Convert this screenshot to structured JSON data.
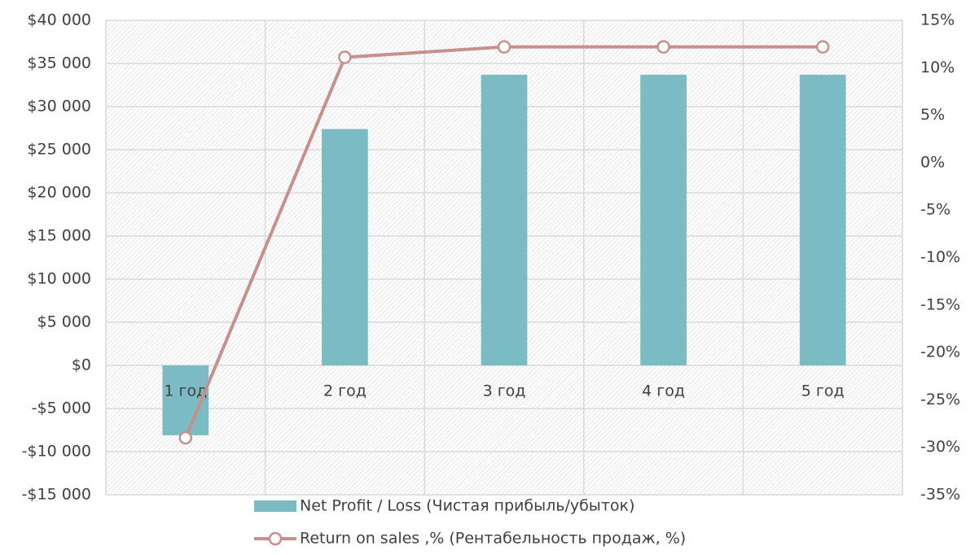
{
  "chart_data": {
    "type": "bar",
    "categories": [
      "1 год",
      "2 год",
      "3 год",
      "4 год",
      "5 год"
    ],
    "series": [
      {
        "name": "Net Profit / Loss (Чистая прибыль/убыток)",
        "type": "bar",
        "color": "#7bbcc4",
        "values": [
          -8100,
          27400,
          33700,
          33700,
          33700
        ]
      },
      {
        "name": "Return on sales ,% (Рентабельность продаж, %)",
        "type": "line",
        "color": "#c9908b",
        "axis": "y2",
        "values": [
          -29,
          11.1,
          12.2,
          12.2,
          12.2
        ]
      }
    ],
    "ylim": [
      -15000,
      40000
    ],
    "yticks": [
      {
        "value": -15000,
        "label": "-$15 000"
      },
      {
        "value": -10000,
        "label": "-$10 000"
      },
      {
        "value": -5000,
        "label": "-$5 000"
      },
      {
        "value": 0,
        "label": "$0"
      },
      {
        "value": 5000,
        "label": "$5 000"
      },
      {
        "value": 10000,
        "label": "$10 000"
      },
      {
        "value": 15000,
        "label": "$15 000"
      },
      {
        "value": 20000,
        "label": "$20 000"
      },
      {
        "value": 25000,
        "label": "$25 000"
      },
      {
        "value": 30000,
        "label": "$30 000"
      },
      {
        "value": 35000,
        "label": "$35 000"
      },
      {
        "value": 40000,
        "label": "$40 000"
      }
    ],
    "y2lim": [
      -35,
      15
    ],
    "y2ticks": [
      {
        "value": -35,
        "label": "-35%"
      },
      {
        "value": -30,
        "label": "-30%"
      },
      {
        "value": -25,
        "label": "-25%"
      },
      {
        "value": -20,
        "label": "-20%"
      },
      {
        "value": -15,
        "label": "-15%"
      },
      {
        "value": -10,
        "label": "-10%"
      },
      {
        "value": -5,
        "label": "-5%"
      },
      {
        "value": 0,
        "label": "0%"
      },
      {
        "value": 5,
        "label": "5%"
      },
      {
        "value": 10,
        "label": "10%"
      },
      {
        "value": 15,
        "label": "15%"
      }
    ],
    "grid": true,
    "legend": "bottom"
  }
}
